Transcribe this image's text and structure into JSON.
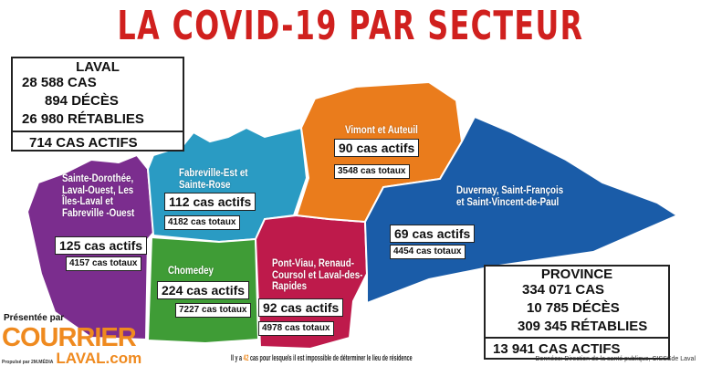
{
  "title": "LA COVID-19 PAR SECTEUR",
  "laval": {
    "heading": "LAVAL",
    "cases": "28 588 CAS",
    "deaths": "894 DÉCÈS",
    "recovered": "26 980 RÉTABLIES",
    "active": "714 CAS ACTIFS"
  },
  "province": {
    "heading": "PROVINCE",
    "cases": "334 071 CAS",
    "deaths": "10 785 DÉCÈS",
    "recovered": "309 345 RÉTABLIES",
    "active": "13 941 CAS ACTIFS"
  },
  "sectors": [
    {
      "name": "Sainte-Dorothée, Laval-Ouest, Les Îles-Laval et Fabreville -Ouest",
      "active": "125 cas actifs",
      "total": "4157 cas totaux",
      "color": "#7b2d8e"
    },
    {
      "name": "Fabreville-Est et Sainte-Rose",
      "active": "112 cas actifs",
      "total": "4182 cas totaux",
      "color": "#2a9bc3"
    },
    {
      "name": "Chomedey",
      "active": "224 cas actifs",
      "total": "7227 cas totaux",
      "color": "#3f9c36"
    },
    {
      "name": "Pont-Viau, Renaud-Coursol et Laval-des-Rapides",
      "active": "92 cas actifs",
      "total": "4978 cas totaux",
      "color": "#be1a4b"
    },
    {
      "name": "Vimont et Auteuil",
      "active": "90 cas actifs",
      "total": "3548 cas totaux",
      "color": "#ea7c1c"
    },
    {
      "name": "Duvernay, Saint-François et Saint-Vincent-de-Paul",
      "active": "69 cas actifs",
      "total": "4454 cas totaux",
      "color": "#1a5ca8"
    }
  ],
  "footnote": {
    "pre": "Il y a ",
    "count": "42",
    "post": " cas pour lesquels il est impossible de déterminer le lieu de résidence",
    "count_color": "#ef8a1f"
  },
  "source": "Données: Direction de la santé publique, CISSSde Laval",
  "branding": {
    "presented": "Présentée par",
    "logo_top": "COURRIER",
    "logo_bottom": "LAVAL.com",
    "propulse": "Propulsé par 2M.MÉDIA"
  }
}
